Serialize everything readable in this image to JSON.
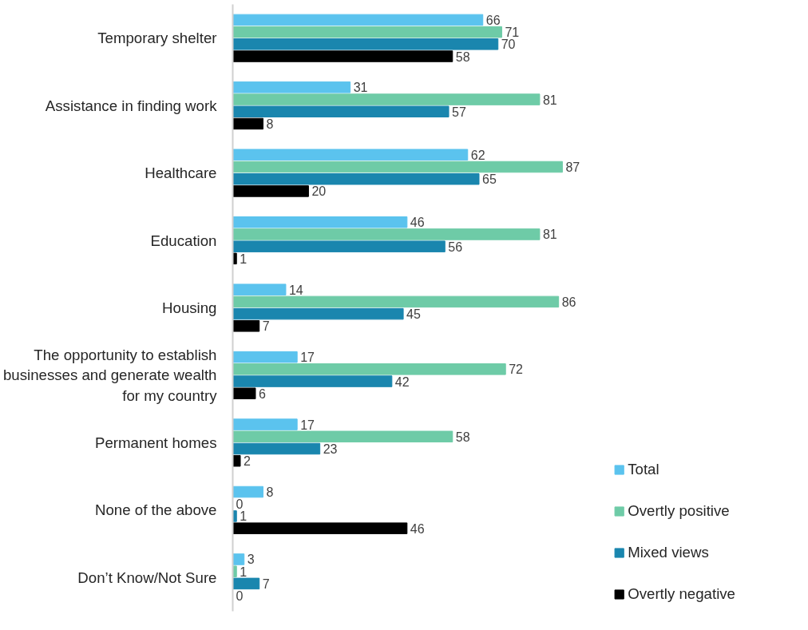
{
  "chart_data": {
    "type": "bar",
    "orientation": "horizontal",
    "categories": [
      "Temporary shelter",
      "Assistance in finding work",
      "Healthcare",
      "Education",
      "Housing",
      "The opportunity to establish businesses and generate wealth for my country",
      "Permanent homes",
      "None of the above",
      "Don’t Know/Not Sure"
    ],
    "series": [
      {
        "name": "Total",
        "color": "#5bc3ee",
        "values": [
          66,
          31,
          62,
          46,
          14,
          17,
          17,
          8,
          3
        ]
      },
      {
        "name": "Overtly positive",
        "color": "#6ecba7",
        "values": [
          71,
          81,
          87,
          81,
          86,
          72,
          58,
          0,
          1
        ]
      },
      {
        "name": "Mixed views",
        "color": "#1a86ae",
        "values": [
          70,
          57,
          65,
          56,
          45,
          42,
          23,
          1,
          7
        ]
      },
      {
        "name": "Overtly negative",
        "color": "#000000",
        "values": [
          58,
          8,
          20,
          1,
          7,
          6,
          2,
          46,
          0
        ]
      }
    ],
    "tick_labels": "y",
    "data_labels": true,
    "legend": "bottom right",
    "grid": false
  }
}
